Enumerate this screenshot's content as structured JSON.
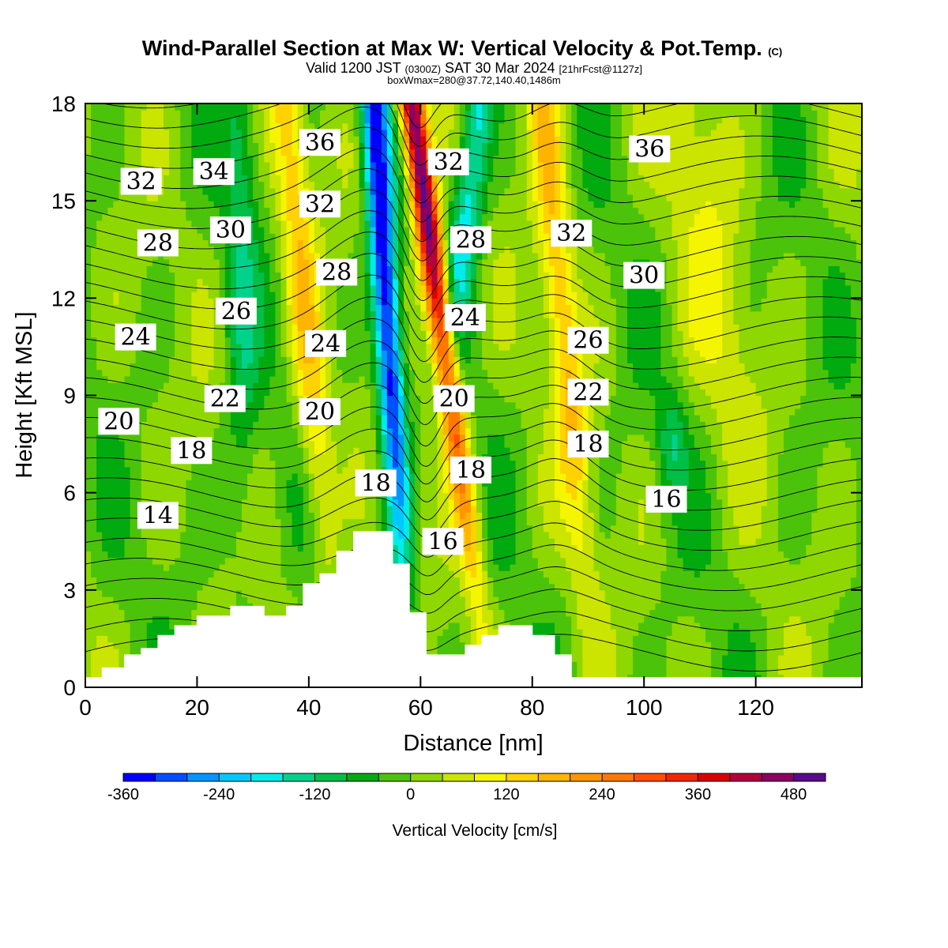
{
  "title": {
    "main": "Wind-Parallel Section at Max W: Vertical Velocity & Pot.Temp.",
    "copyright": "(C)",
    "valid_a": "Valid 1200 JST",
    "valid_tz": "(0300Z)",
    "valid_b": "SAT 30 Mar 2024",
    "forecast": "[21hrFcst@1127z]",
    "box": "boxWmax=280@37.72,140.40,1486m"
  },
  "chart_data": {
    "type": "heatmap",
    "xlabel": "Distance [nm]",
    "ylabel": "Height [Kft MSL]",
    "xlim": [
      0,
      139
    ],
    "ylim": [
      0,
      18
    ],
    "xticks": [
      0,
      20,
      40,
      60,
      80,
      100,
      120
    ],
    "xtick_labels": [
      "0",
      "20",
      "40",
      "60",
      "80",
      "100",
      "120"
    ],
    "yticks": [
      0,
      3,
      6,
      9,
      12,
      15,
      18
    ],
    "ytick_labels": [
      "0",
      "3",
      "6",
      "9",
      "12",
      "15",
      "18"
    ],
    "colorbar": {
      "title": "Vertical Velocity [cm/s]",
      "min": -360,
      "max": 520,
      "step": 40,
      "tick_values": [
        -360,
        -240,
        -120,
        0,
        120,
        240,
        360,
        480
      ],
      "tick_labels": [
        "-360",
        "-240",
        "-120",
        "0",
        "120",
        "240",
        "360",
        "480"
      ],
      "colors": [
        "#0000ff",
        "#0050ff",
        "#0096ff",
        "#00c8ff",
        "#00ecec",
        "#00d28c",
        "#00be46",
        "#00aa0f",
        "#4bc30a",
        "#8fd700",
        "#cbe400",
        "#f5f500",
        "#ffd200",
        "#ffb400",
        "#ff9600",
        "#ff7800",
        "#ff5000",
        "#f02800",
        "#dc0000",
        "#b4003c",
        "#8c0064",
        "#5a0a8c"
      ]
    },
    "terrain_kft": [
      [
        0,
        0.3
      ],
      [
        3,
        0.6
      ],
      [
        7,
        1.0
      ],
      [
        10,
        1.2
      ],
      [
        13,
        1.6
      ],
      [
        16,
        1.9
      ],
      [
        20,
        2.2
      ],
      [
        26,
        2.5
      ],
      [
        32,
        2.2
      ],
      [
        36,
        2.5
      ],
      [
        39,
        3.2
      ],
      [
        42,
        3.5
      ],
      [
        45,
        4.2
      ],
      [
        48,
        4.8
      ],
      [
        51,
        4.8
      ],
      [
        55,
        3.8
      ],
      [
        58,
        2.3
      ],
      [
        61,
        1.0
      ],
      [
        68,
        1.3
      ],
      [
        71,
        1.6
      ],
      [
        74,
        1.9
      ],
      [
        80,
        1.6
      ],
      [
        84,
        1.0
      ],
      [
        87,
        0.3
      ],
      [
        139,
        0.3
      ]
    ],
    "isentrope_labels": [
      {
        "text": "36",
        "x": 42,
        "y": 16.8
      },
      {
        "text": "34",
        "x": 23,
        "y": 15.9
      },
      {
        "text": "32",
        "x": 10,
        "y": 15.6
      },
      {
        "text": "32",
        "x": 42,
        "y": 14.9
      },
      {
        "text": "32",
        "x": 65,
        "y": 16.2
      },
      {
        "text": "36",
        "x": 101,
        "y": 16.6
      },
      {
        "text": "28",
        "x": 13,
        "y": 13.7
      },
      {
        "text": "30",
        "x": 26,
        "y": 14.1
      },
      {
        "text": "28",
        "x": 45,
        "y": 12.8
      },
      {
        "text": "28",
        "x": 69,
        "y": 13.8
      },
      {
        "text": "32",
        "x": 87,
        "y": 14.0
      },
      {
        "text": "30",
        "x": 100,
        "y": 12.7
      },
      {
        "text": "26",
        "x": 27,
        "y": 11.6
      },
      {
        "text": "24",
        "x": 9,
        "y": 10.8
      },
      {
        "text": "24",
        "x": 43,
        "y": 10.6
      },
      {
        "text": "24",
        "x": 68,
        "y": 11.4
      },
      {
        "text": "26",
        "x": 90,
        "y": 10.7
      },
      {
        "text": "22",
        "x": 25,
        "y": 8.9
      },
      {
        "text": "20",
        "x": 6,
        "y": 8.2
      },
      {
        "text": "20",
        "x": 42,
        "y": 8.5
      },
      {
        "text": "20",
        "x": 66,
        "y": 8.9
      },
      {
        "text": "22",
        "x": 90,
        "y": 9.1
      },
      {
        "text": "18",
        "x": 19,
        "y": 7.3
      },
      {
        "text": "18",
        "x": 52,
        "y": 6.3
      },
      {
        "text": "18",
        "x": 69,
        "y": 6.7
      },
      {
        "text": "18",
        "x": 90,
        "y": 7.5
      },
      {
        "text": "14",
        "x": 13,
        "y": 5.3
      },
      {
        "text": "16",
        "x": 64,
        "y": 4.5
      },
      {
        "text": "16",
        "x": 104,
        "y": 5.8
      }
    ]
  }
}
